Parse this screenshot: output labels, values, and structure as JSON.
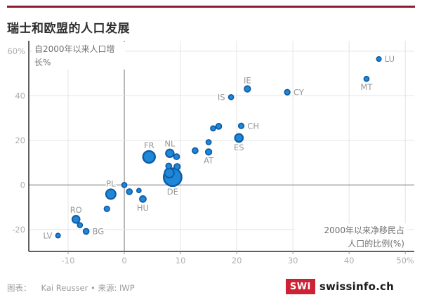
{
  "header": {
    "rule_color": "#8a1c2e",
    "title": "瑞士和欧盟的人口发展"
  },
  "footer": {
    "credit_prefix": "图表：",
    "credit": "Kai Reusser • 来源: IWP",
    "logo_swi": "SWI",
    "logo_text": "swissinfo.ch",
    "logo_color": "#cd2233"
  },
  "chart_data": {
    "type": "scatter",
    "title": "瑞士和欧盟的人口发展",
    "ylabel": "自2000年以来人口增长%",
    "xlabel": "2000年以来净移民占人口的比例(%)",
    "axis_titles": {
      "y1": "自2000年以来人口增",
      "y2": "长%",
      "x1": "2000年以来净移民占",
      "x2": "人口的比例(%)"
    },
    "xlim": [
      -17,
      51.6
    ],
    "ylim": [
      -29.8,
      64.7
    ],
    "grid": true,
    "x_ticks": [
      {
        "v": -10,
        "label": "-10"
      },
      {
        "v": 0,
        "label": "0"
      },
      {
        "v": 10,
        "label": "10"
      },
      {
        "v": 20,
        "label": "20"
      },
      {
        "v": 30,
        "label": "30"
      },
      {
        "v": 40,
        "label": "40"
      },
      {
        "v": 50,
        "label": "50%"
      }
    ],
    "y_ticks": [
      {
        "v": 60,
        "label": "60%"
      },
      {
        "v": 40,
        "label": "40"
      },
      {
        "v": 20,
        "label": "20"
      },
      {
        "v": 0,
        "label": "0"
      },
      {
        "v": -20,
        "label": "-20"
      }
    ],
    "points": [
      {
        "label": "LV",
        "x": -11.8,
        "y": -22.7,
        "r": 3.2,
        "labelPos": "left"
      },
      {
        "label": "RO",
        "x": -8.6,
        "y": -15.4,
        "r": 5.3,
        "labelPos": "above"
      },
      {
        "label": "",
        "x": -7.9,
        "y": -18.0,
        "r": 3.5,
        "labelPos": null
      },
      {
        "label": "BG",
        "x": -6.8,
        "y": -20.8,
        "r": 4.0,
        "labelPos": "right"
      },
      {
        "label": "",
        "x": -3.1,
        "y": -10.7,
        "r": 3.8,
        "labelPos": null
      },
      {
        "label": "PL",
        "x": -2.4,
        "y": -4.1,
        "r": 7.0,
        "labelPos": "above"
      },
      {
        "label": "",
        "x": 0.0,
        "y": 0.0,
        "r": 3.5,
        "labelPos": null
      },
      {
        "label": "",
        "x": 0.9,
        "y": -3.0,
        "r": 4.0,
        "labelPos": null
      },
      {
        "label": "",
        "x": 2.6,
        "y": -2.5,
        "r": 3.0,
        "labelPos": null
      },
      {
        "label": "HU",
        "x": 3.3,
        "y": -6.3,
        "r": 4.5,
        "labelPos": "below"
      },
      {
        "label": "FR",
        "x": 4.4,
        "y": 12.6,
        "r": 8.5,
        "labelPos": "above"
      },
      {
        "label": "NL",
        "x": 8.1,
        "y": 14.2,
        "r": 5.7,
        "labelPos": "above"
      },
      {
        "label": "",
        "x": 9.3,
        "y": 12.7,
        "r": 4.0,
        "labelPos": null
      },
      {
        "label": "",
        "x": 7.9,
        "y": 8.5,
        "r": 4.0,
        "labelPos": null
      },
      {
        "label": "",
        "x": 9.4,
        "y": 8.2,
        "r": 4.3,
        "labelPos": null
      },
      {
        "label": "",
        "x": 8.0,
        "y": 5.4,
        "r": 6.7,
        "labelPos": null
      },
      {
        "label": "DE",
        "x": 8.6,
        "y": 3.5,
        "r": 12.7,
        "labelPos": "below"
      },
      {
        "label": "",
        "x": 12.6,
        "y": 15.4,
        "r": 4.0,
        "labelPos": null
      },
      {
        "label": "AT",
        "x": 15.0,
        "y": 14.8,
        "r": 4.3,
        "labelPos": "below"
      },
      {
        "label": "",
        "x": 15.0,
        "y": 19.2,
        "r": 3.5,
        "labelPos": null
      },
      {
        "label": "",
        "x": 15.8,
        "y": 25.4,
        "r": 3.5,
        "labelPos": null
      },
      {
        "label": "",
        "x": 16.8,
        "y": 26.3,
        "r": 4.0,
        "labelPos": null
      },
      {
        "label": "ES",
        "x": 20.4,
        "y": 21.1,
        "r": 5.8,
        "labelPos": "below"
      },
      {
        "label": "CH",
        "x": 20.8,
        "y": 26.5,
        "r": 3.8,
        "labelPos": "right"
      },
      {
        "label": "IS",
        "x": 19.0,
        "y": 39.4,
        "r": 3.5,
        "labelPos": "left"
      },
      {
        "label": "IE",
        "x": 21.9,
        "y": 43.1,
        "r": 4.3,
        "labelPos": "above"
      },
      {
        "label": "CY",
        "x": 29.0,
        "y": 41.6,
        "r": 3.8,
        "labelPos": "right"
      },
      {
        "label": "MT",
        "x": 43.1,
        "y": 47.6,
        "r": 3.5,
        "labelPos": "below"
      },
      {
        "label": "LU",
        "x": 45.3,
        "y": 56.5,
        "r": 3.2,
        "labelPos": "right"
      }
    ],
    "colors": {
      "point_fill": "#1f87d7",
      "point_stroke": "#0d5ba5",
      "grid": "#e4e4e4",
      "zero_line": "#8d8d8d",
      "axis_line": "#2b2b2b",
      "tick_label": "#aeaeae",
      "point_label": "#979797"
    }
  }
}
